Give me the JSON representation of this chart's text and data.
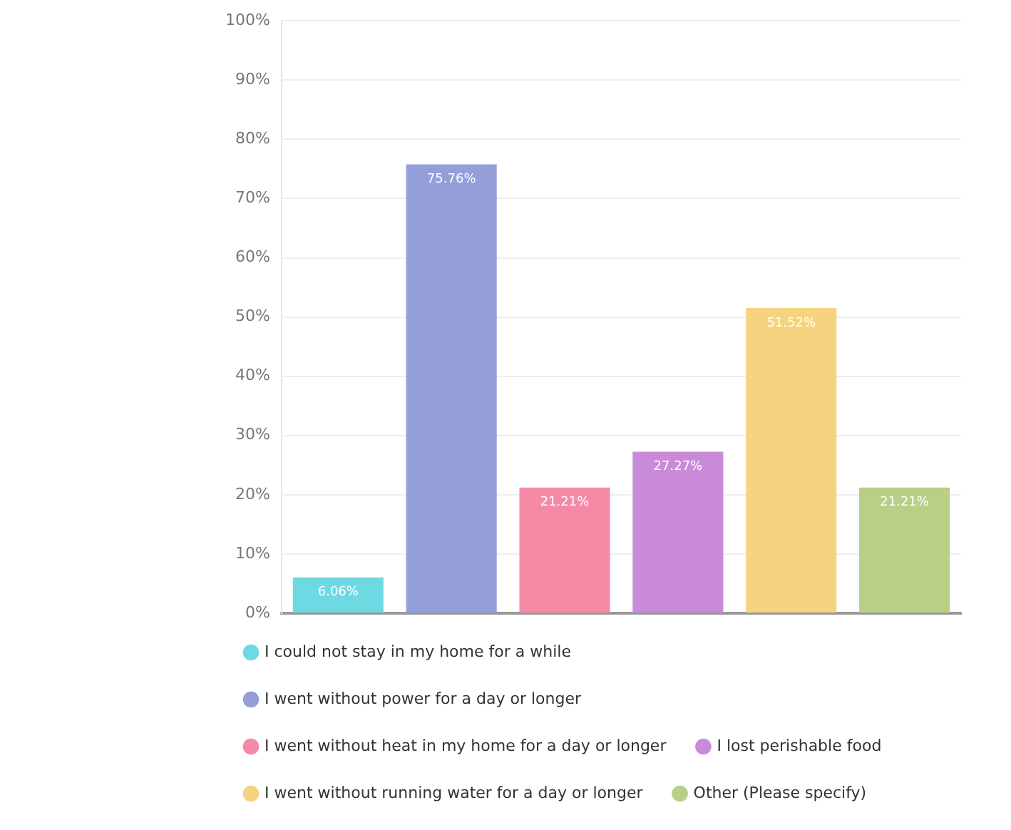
{
  "chart_data": {
    "type": "bar",
    "categories": [
      null,
      null,
      null,
      null,
      null,
      null
    ],
    "series": [
      {
        "name": "I could not stay in my home for a while",
        "color": "#6fd9e3",
        "values": [
          6.06,
          null,
          null,
          null,
          null,
          null
        ],
        "value_labels": [
          "6.06%",
          null,
          null,
          null,
          null,
          null
        ]
      },
      {
        "name": "I went without power for a day or longer",
        "color": "#949fd9",
        "values": [
          null,
          75.76,
          null,
          null,
          null,
          null
        ],
        "value_labels": [
          null,
          "75.76%",
          null,
          null,
          null,
          null
        ]
      },
      {
        "name": "I went without heat in my home for a day or longer",
        "color": "#f58aa6",
        "values": [
          null,
          null,
          21.21,
          null,
          null,
          null
        ],
        "value_labels": [
          null,
          null,
          "21.21%",
          null,
          null,
          null
        ]
      },
      {
        "name": "I lost perishable food",
        "color": "#c98bd8",
        "values": [
          null,
          null,
          null,
          27.27,
          null,
          null
        ],
        "value_labels": [
          null,
          null,
          null,
          "27.27%",
          null,
          null
        ]
      },
      {
        "name": "I went without running water for a day or longer",
        "color": "#f6d37f",
        "values": [
          null,
          null,
          null,
          null,
          51.52,
          null
        ],
        "value_labels": [
          null,
          null,
          null,
          null,
          "51.52%",
          null
        ]
      },
      {
        "name": "Other (Please specify)",
        "color": "#b9cf86",
        "values": [
          null,
          null,
          null,
          null,
          null,
          21.21
        ],
        "value_labels": [
          null,
          null,
          null,
          null,
          null,
          "21.21%"
        ]
      }
    ],
    "ylim": [
      0,
      100
    ],
    "yticks": [
      {
        "value": 0,
        "label": "0%"
      },
      {
        "value": 10,
        "label": "10%"
      },
      {
        "value": 20,
        "label": "20%"
      },
      {
        "value": 30,
        "label": "30%"
      },
      {
        "value": 40,
        "label": "40%"
      },
      {
        "value": 50,
        "label": "50%"
      },
      {
        "value": 60,
        "label": "60%"
      },
      {
        "value": 70,
        "label": "70%"
      },
      {
        "value": 80,
        "label": "80%"
      },
      {
        "value": 90,
        "label": "90%"
      },
      {
        "value": 100,
        "label": "100%"
      }
    ],
    "grid": "y",
    "legend": "bottom",
    "tick_labels": "y"
  }
}
